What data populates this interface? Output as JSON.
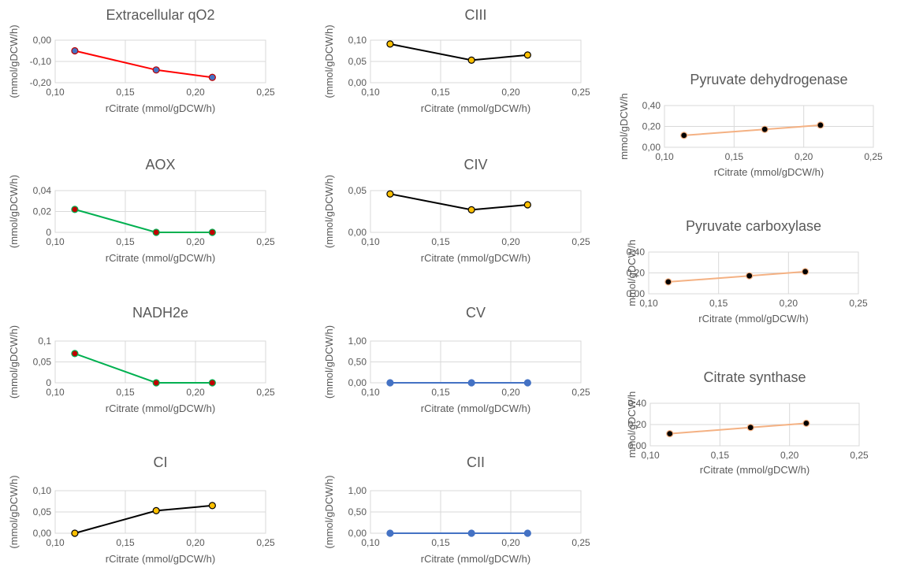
{
  "chart_data": [
    {
      "type": "line",
      "title": "Extracellular qO2",
      "xlabel": "rCitrate (mmol/gDCW/h)",
      "ylabel": "(mmol/gDCW/h)",
      "xlim": [
        0.1,
        0.25
      ],
      "xticks": [
        "0,10",
        "0,15",
        "0,20",
        "0,25"
      ],
      "ylim": [
        -0.2,
        0.0
      ],
      "yticks": [
        "-0,20",
        "-0,10",
        "0,00"
      ],
      "series": [
        {
          "x": [
            0.114,
            0.172,
            0.212
          ],
          "y": [
            -0.05,
            -0.14,
            -0.175
          ]
        }
      ],
      "colors": {
        "line": "#ff0000",
        "marker_fill": "#4472c4",
        "marker_edge": "#c00000"
      }
    },
    {
      "type": "line",
      "title": "AOX",
      "xlabel": "rCitrate (mmol/gDCW/h)",
      "ylabel": "(mmol/gDCW/h)",
      "xlim": [
        0.1,
        0.25
      ],
      "xticks": [
        "0,10",
        "0,15",
        "0,20",
        "0,25"
      ],
      "ylim": [
        0,
        0.04
      ],
      "yticks": [
        "0",
        "0,02",
        "0,04"
      ],
      "series": [
        {
          "x": [
            0.114,
            0.172,
            0.212
          ],
          "y": [
            0.022,
            0,
            0
          ]
        }
      ],
      "colors": {
        "line": "#00b050",
        "marker_fill": "#c00000",
        "marker_edge": "#00b050"
      }
    },
    {
      "type": "line",
      "title": "NADH2e",
      "xlabel": "rCitrate (mmol/gDCW/h)",
      "ylabel": "(mmol/gDCW/h)",
      "xlim": [
        0.1,
        0.25
      ],
      "xticks": [
        "0,10",
        "0,15",
        "0,20",
        "0,25"
      ],
      "ylim": [
        0,
        0.1
      ],
      "yticks": [
        "0",
        "0,05",
        "0,1"
      ],
      "series": [
        {
          "x": [
            0.114,
            0.172,
            0.212
          ],
          "y": [
            0.07,
            0,
            0
          ]
        }
      ],
      "colors": {
        "line": "#00b050",
        "marker_fill": "#c00000",
        "marker_edge": "#00b050"
      }
    },
    {
      "type": "line",
      "title": "CI",
      "xlabel": "rCitrate (mmol/gDCW/h)",
      "ylabel": "(mmol/gDCW/h)",
      "xlim": [
        0.1,
        0.25
      ],
      "xticks": [
        "0,10",
        "0,15",
        "0,20",
        "0,25"
      ],
      "ylim": [
        0,
        0.1
      ],
      "yticks": [
        "0,00",
        "0,05",
        "0,10"
      ],
      "series": [
        {
          "x": [
            0.114,
            0.172,
            0.212
          ],
          "y": [
            0,
            0.053,
            0.065
          ]
        }
      ],
      "colors": {
        "line": "#000000",
        "marker_fill": "#ffc000",
        "marker_edge": "#000000"
      }
    },
    {
      "type": "line",
      "title": "CIII",
      "xlabel": "rCitrate (mmol/gDCW/h)",
      "ylabel": "(mmol/gDCW/h)",
      "xlim": [
        0.1,
        0.25
      ],
      "xticks": [
        "0,10",
        "0,15",
        "0,20",
        "0,25"
      ],
      "ylim": [
        0,
        0.1
      ],
      "yticks": [
        "0,00",
        "0,05",
        "0,10"
      ],
      "series": [
        {
          "x": [
            0.114,
            0.172,
            0.212
          ],
          "y": [
            0.091,
            0.053,
            0.065
          ]
        }
      ],
      "colors": {
        "line": "#000000",
        "marker_fill": "#ffc000",
        "marker_edge": "#000000"
      }
    },
    {
      "type": "line",
      "title": "CIV",
      "xlabel": "rCitrate (mmol/gDCW/h)",
      "ylabel": "(mmol/gDCW/h)",
      "xlim": [
        0.1,
        0.25
      ],
      "xticks": [
        "0,10",
        "0,15",
        "0,20",
        "0,25"
      ],
      "ylim": [
        0,
        0.05
      ],
      "yticks": [
        "0,00",
        "0,05"
      ],
      "series": [
        {
          "x": [
            0.114,
            0.172,
            0.212
          ],
          "y": [
            0.046,
            0.027,
            0.033
          ]
        }
      ],
      "colors": {
        "line": "#000000",
        "marker_fill": "#ffc000",
        "marker_edge": "#000000"
      }
    },
    {
      "type": "line",
      "title": "CV",
      "xlabel": "rCitrate (mmol/gDCW/h)",
      "ylabel": "(mmol/gDCW/h)",
      "xlim": [
        0.1,
        0.25
      ],
      "xticks": [
        "0,10",
        "0,15",
        "0,20",
        "0,25"
      ],
      "ylim": [
        0,
        1.0
      ],
      "yticks": [
        "0,00",
        "0,50",
        "1,00"
      ],
      "series": [
        {
          "x": [
            0.114,
            0.172,
            0.212
          ],
          "y": [
            0,
            0,
            0
          ]
        }
      ],
      "colors": {
        "line": "#4472c4",
        "marker_fill": "#4472c4",
        "marker_edge": "#4472c4"
      }
    },
    {
      "type": "line",
      "title": "CII",
      "xlabel": "rCitrate (mmol/gDCW/h)",
      "ylabel": "(mmol/gDCW/h)",
      "xlim": [
        0.1,
        0.25
      ],
      "xticks": [
        "0,10",
        "0,15",
        "0,20",
        "0,25"
      ],
      "ylim": [
        0,
        1.0
      ],
      "yticks": [
        "0,00",
        "0,50",
        "1,00"
      ],
      "series": [
        {
          "x": [
            0.114,
            0.172,
            0.212
          ],
          "y": [
            0,
            0,
            0
          ]
        }
      ],
      "colors": {
        "line": "#4472c4",
        "marker_fill": "#4472c4",
        "marker_edge": "#4472c4"
      }
    },
    {
      "type": "line",
      "title": "Pyruvate dehydrogenase",
      "xlabel": "rCitrate (mmol/gDCW/h)",
      "ylabel": "mmol/gDCW/h",
      "xlim": [
        0.1,
        0.25
      ],
      "xticks": [
        "0,10",
        "0,15",
        "0,20",
        "0,25"
      ],
      "ylim": [
        0,
        0.4
      ],
      "yticks": [
        "0,00",
        "0,20",
        "0,40"
      ],
      "series": [
        {
          "x": [
            0.114,
            0.172,
            0.212
          ],
          "y": [
            0.114,
            0.172,
            0.212
          ]
        }
      ],
      "colors": {
        "line": "#f4b183",
        "marker_fill": "#000000",
        "marker_edge": "#f4b183"
      }
    },
    {
      "type": "line",
      "title": "Pyruvate carboxylase",
      "xlabel": "rCitrate (mmol/gDCW/h)",
      "ylabel": "mmol/gDCW/h",
      "xlim": [
        0.1,
        0.25
      ],
      "xticks": [
        "0,10",
        "0,15",
        "0,20",
        "0,25"
      ],
      "ylim": [
        0,
        0.4
      ],
      "yticks": [
        "0,00",
        "0,20",
        "0,40"
      ],
      "series": [
        {
          "x": [
            0.114,
            0.172,
            0.212
          ],
          "y": [
            0.114,
            0.172,
            0.212
          ]
        }
      ],
      "colors": {
        "line": "#f4b183",
        "marker_fill": "#000000",
        "marker_edge": "#f4b183"
      }
    },
    {
      "type": "line",
      "title": "Citrate synthase",
      "xlabel": "rCitrate (mmol/gDCW/h)",
      "ylabel": "mmol/gDCW/h",
      "xlim": [
        0.1,
        0.25
      ],
      "xticks": [
        "0,10",
        "0,15",
        "0,20",
        "0,25"
      ],
      "ylim": [
        0,
        0.4
      ],
      "yticks": [
        "0,00",
        "0,20",
        "0,40"
      ],
      "series": [
        {
          "x": [
            0.114,
            0.172,
            0.212
          ],
          "y": [
            0.114,
            0.172,
            0.212
          ]
        }
      ],
      "colors": {
        "line": "#f4b183",
        "marker_fill": "#000000",
        "marker_edge": "#f4b183"
      }
    }
  ]
}
